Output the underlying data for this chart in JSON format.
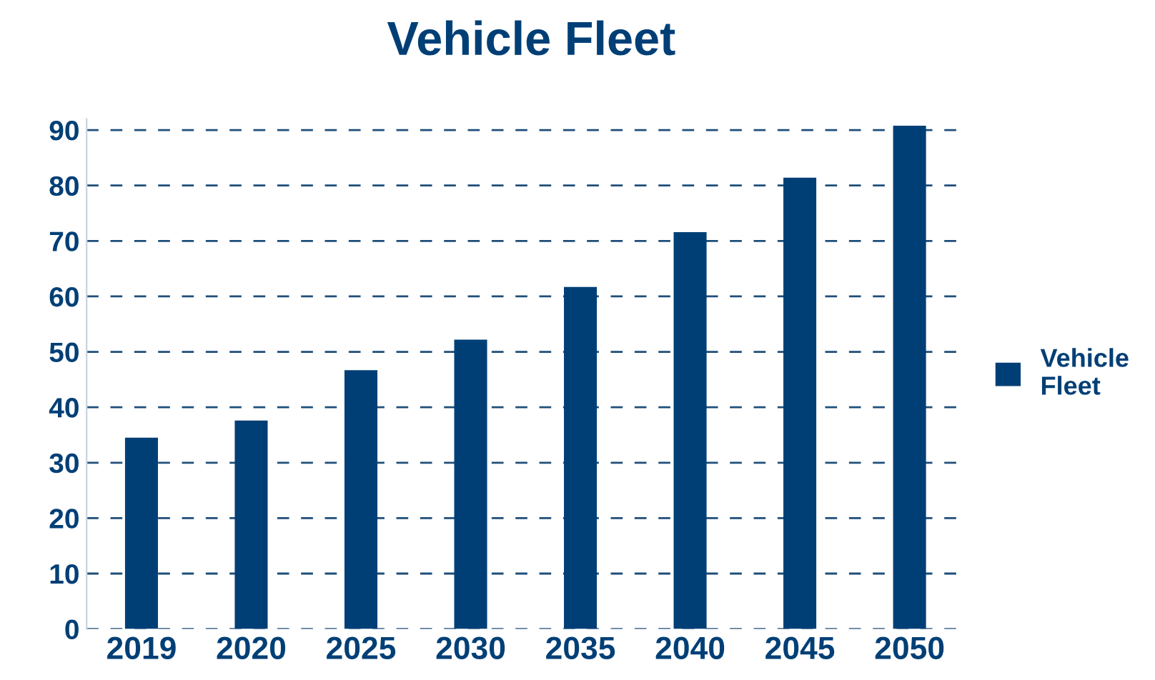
{
  "chart_data": {
    "type": "bar",
    "title": "Vehicle Fleet",
    "categories": [
      "2019",
      "2020",
      "2025",
      "2030",
      "2035",
      "2040",
      "2045",
      "2050"
    ],
    "series": [
      {
        "name": "Vehicle\nFleet",
        "color": "#003f76",
        "values": [
          34.5,
          37.6,
          46.7,
          52.2,
          61.7,
          71.6,
          81.4,
          90.8
        ]
      }
    ],
    "ylim": [
      0,
      92
    ],
    "yticks": [
      0,
      10,
      20,
      30,
      40,
      50,
      60,
      70,
      80,
      90
    ],
    "grid": "y",
    "legend": "right"
  }
}
